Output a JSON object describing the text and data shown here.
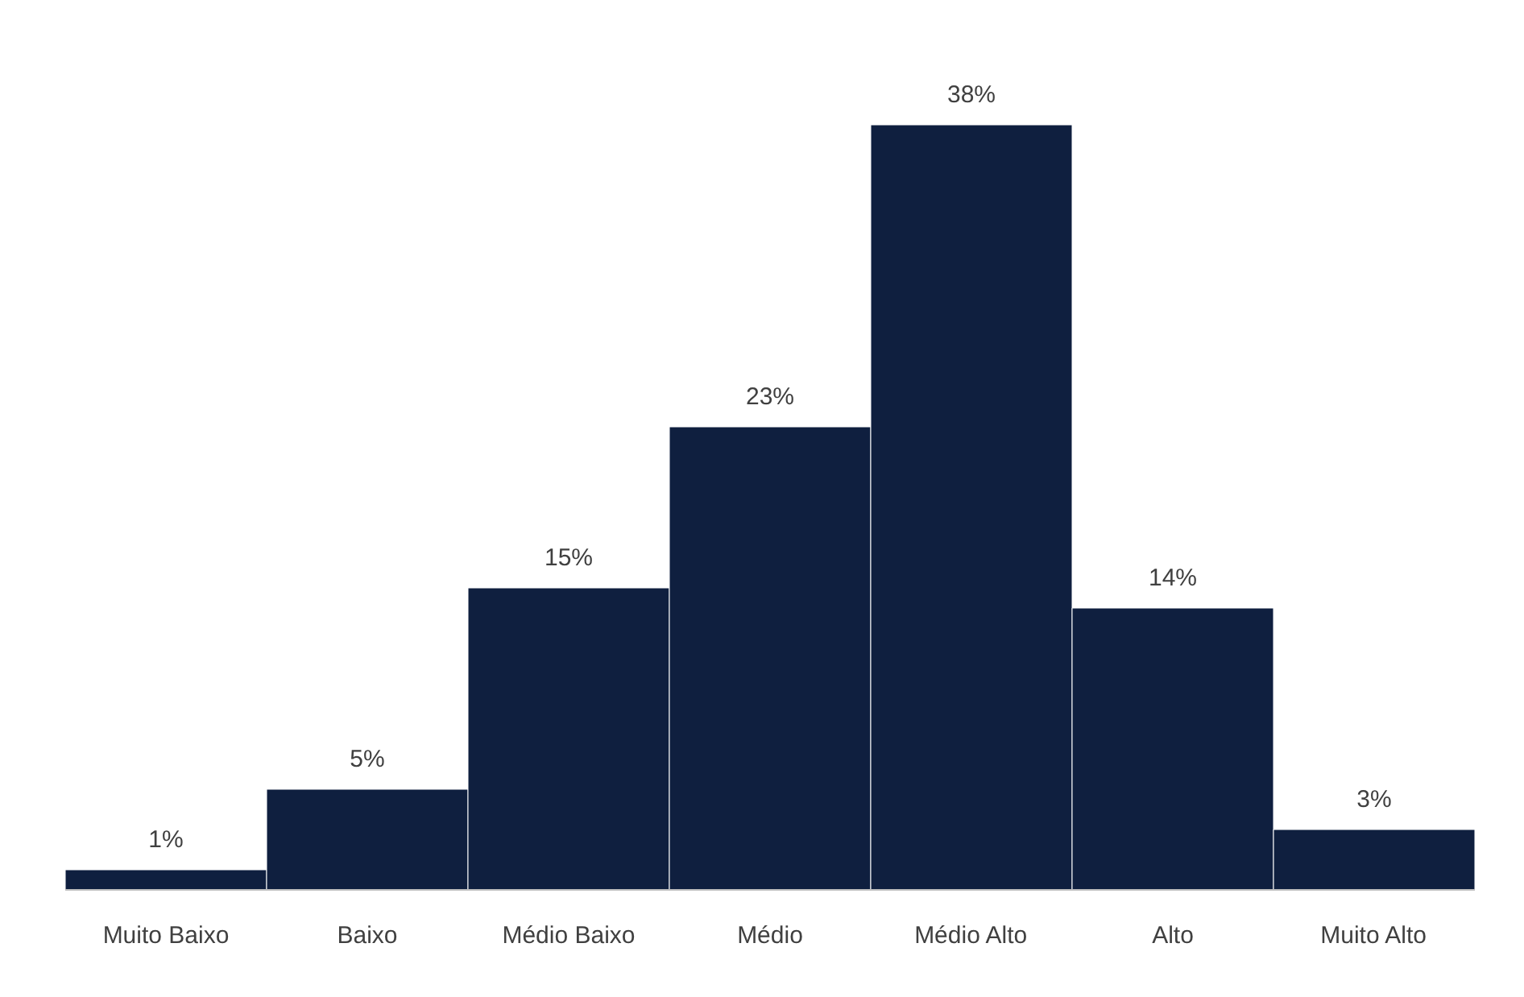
{
  "chart_data": {
    "type": "bar",
    "categories": [
      "Muito Baixo",
      "Baixo",
      "Médio Baixo",
      "Médio",
      "Médio Alto",
      "Alto",
      "Muito Alto"
    ],
    "values": [
      1,
      5,
      15,
      23,
      38,
      14,
      3
    ],
    "value_labels": [
      "1%",
      "5%",
      "15%",
      "23%",
      "38%",
      "14%",
      "3%"
    ],
    "color": "#0f1f3f",
    "grid": false
  }
}
